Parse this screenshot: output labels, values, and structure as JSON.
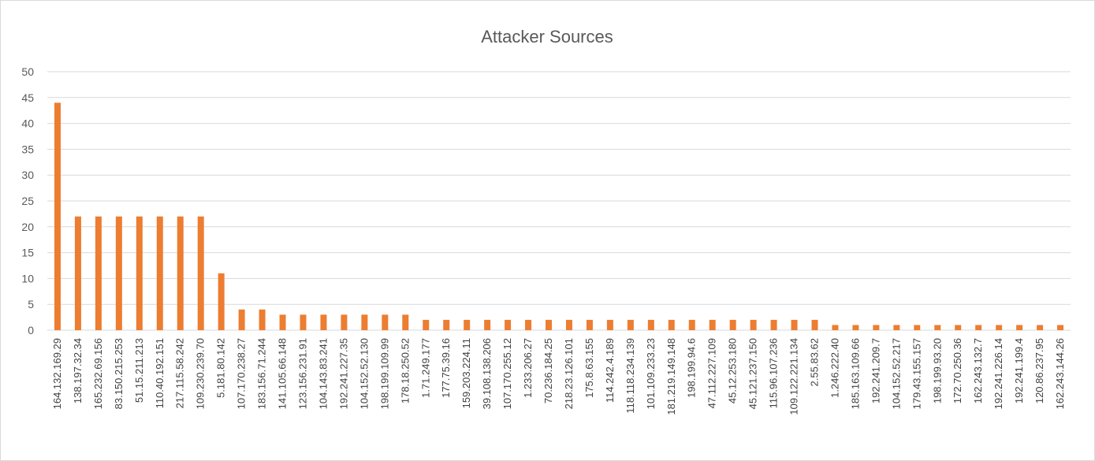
{
  "chart_data": {
    "type": "bar",
    "title": "Attacker Sources",
    "xlabel": "",
    "ylabel": "",
    "ylim": [
      0,
      50
    ],
    "yticks": [
      0,
      5,
      10,
      15,
      20,
      25,
      30,
      35,
      40,
      45,
      50
    ],
    "grid": true,
    "legend": "none",
    "bar_color": "#ED7D31",
    "categories": [
      "164.132.169.29",
      "138.197.32.34",
      "165.232.69.156",
      "83.150.215.253",
      "51.15.211.213",
      "110.40.192.151",
      "217.115.58.242",
      "109.230.239.70",
      "5.181.80.142",
      "107.170.238.27",
      "183.156.71.244",
      "141.105.66.148",
      "123.156.231.91",
      "104.143.83.241",
      "192.241.227.35",
      "104.152.52.130",
      "198.199.109.99",
      "178.18.250.52",
      "1.71.249.177",
      "177.75.39.16",
      "159.203.224.11",
      "39.108.138.206",
      "107.170.255.12",
      "1.233.206.27",
      "70.236.184.25",
      "218.23.126.101",
      "175.8.63.155",
      "114.242.4.189",
      "118.118.234.139",
      "101.109.233.23",
      "181.219.149.148",
      "198.199.94.6",
      "47.112.227.109",
      "45.12.253.180",
      "45.121.237.150",
      "115.96.107.236",
      "109.122.221.134",
      "2.55.83.62",
      "1.246.222.40",
      "185.163.109.66",
      "192.241.209.7",
      "104.152.52.217",
      "179.43.155.157",
      "198.199.93.20",
      "172.70.250.36",
      "162.243.132.7",
      "192.241.226.14",
      "192.241.199.4",
      "120.86.237.95",
      "162.243.144.26"
    ],
    "values": [
      44,
      22,
      22,
      22,
      22,
      22,
      22,
      22,
      11,
      4,
      4,
      3,
      3,
      3,
      3,
      3,
      3,
      3,
      2,
      2,
      2,
      2,
      2,
      2,
      2,
      2,
      2,
      2,
      2,
      2,
      2,
      2,
      2,
      2,
      2,
      2,
      2,
      2,
      1,
      1,
      1,
      1,
      1,
      1,
      1,
      1,
      1,
      1,
      1,
      1
    ]
  }
}
